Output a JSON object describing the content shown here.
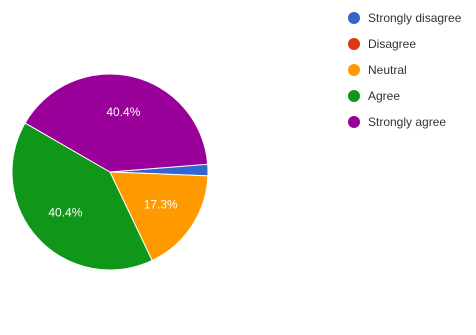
{
  "chart_data": {
    "type": "pie",
    "categories": [
      "Strongly disagree",
      "Disagree",
      "Neutral",
      "Agree",
      "Strongly agree"
    ],
    "values": [
      1.9,
      0,
      17.3,
      40.4,
      40.4
    ],
    "value_labels": [
      "",
      "",
      "17.3%",
      "40.4%",
      "40.4%"
    ],
    "colors": [
      "#3366cc",
      "#dc3912",
      "#ff9900",
      "#109618",
      "#990099"
    ],
    "legend_position": "right",
    "start_angle_deg": 90,
    "direction": "clockwise"
  }
}
